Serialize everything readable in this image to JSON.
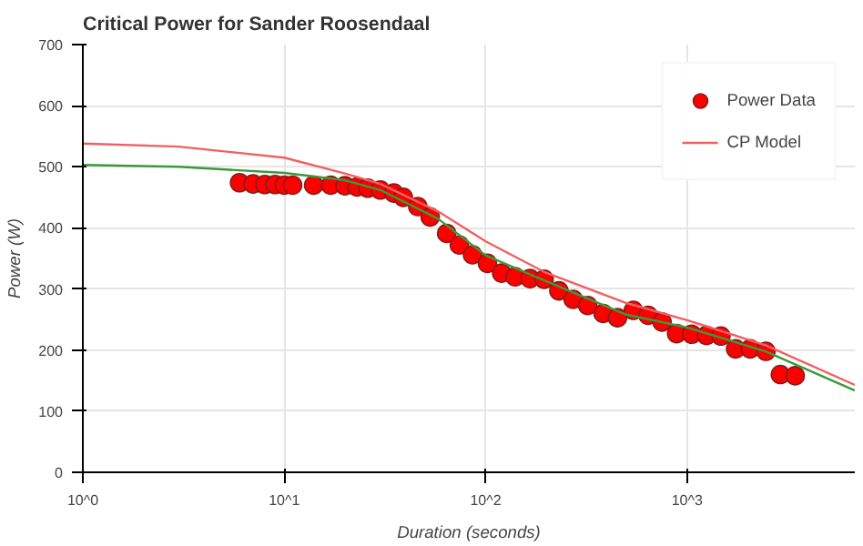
{
  "chart_data": {
    "type": "scatter",
    "title": "Critical Power for Sander Roosendaal",
    "xlabel": "Duration (seconds)",
    "ylabel": "Power (W)",
    "log": "x",
    "xlim": [
      1,
      6800
    ],
    "ylim": [
      0,
      700
    ],
    "xticks": [
      {
        "value": 1,
        "label": "10^0"
      },
      {
        "value": 10,
        "label": "10^1"
      },
      {
        "value": 100,
        "label": "10^2"
      },
      {
        "value": 1000,
        "label": "10^3"
      }
    ],
    "yticks": [
      0,
      100,
      200,
      300,
      400,
      500,
      600,
      700
    ],
    "grid": true,
    "legend": "top right",
    "series": [
      {
        "name": "Power Data",
        "marker": "circle",
        "color": "#ff0000",
        "x": [
          6,
          7,
          8,
          9,
          10,
          11,
          14,
          17,
          20,
          23,
          26,
          30,
          35,
          39,
          46,
          53,
          64,
          74,
          86,
          102,
          120,
          140,
          166,
          195,
          231,
          272,
          321,
          383,
          451,
          541,
          640,
          751,
          887,
          1055,
          1247,
          1472,
          1741,
          2057,
          2462,
          2905,
          3440
        ],
        "values": [
          474,
          472,
          471,
          471,
          470,
          470,
          470,
          470,
          469,
          467,
          465,
          462,
          457,
          450,
          435,
          418,
          391,
          372,
          356,
          342,
          326,
          320,
          317,
          316,
          297,
          283,
          273,
          260,
          253,
          265,
          257,
          246,
          227,
          226,
          224,
          223,
          202,
          202,
          198,
          160,
          158
        ]
      },
      {
        "name": "CP Model",
        "type": "line",
        "color": "#f06060",
        "x": [
          1,
          3,
          10,
          20,
          30,
          58,
          100,
          195,
          500,
          1000,
          2450,
          6800
        ],
        "values": [
          538,
          533,
          515,
          489,
          472,
          427,
          378,
          328,
          277,
          249,
          208,
          143
        ]
      },
      {
        "type": "line",
        "color": "#3a9a3a",
        "x": [
          1,
          3,
          10,
          20,
          30,
          58,
          100,
          195,
          500,
          1000,
          2450,
          6800
        ],
        "values": [
          503,
          500,
          490,
          478,
          462,
          415,
          355,
          314,
          258,
          237,
          198,
          134
        ]
      }
    ]
  }
}
